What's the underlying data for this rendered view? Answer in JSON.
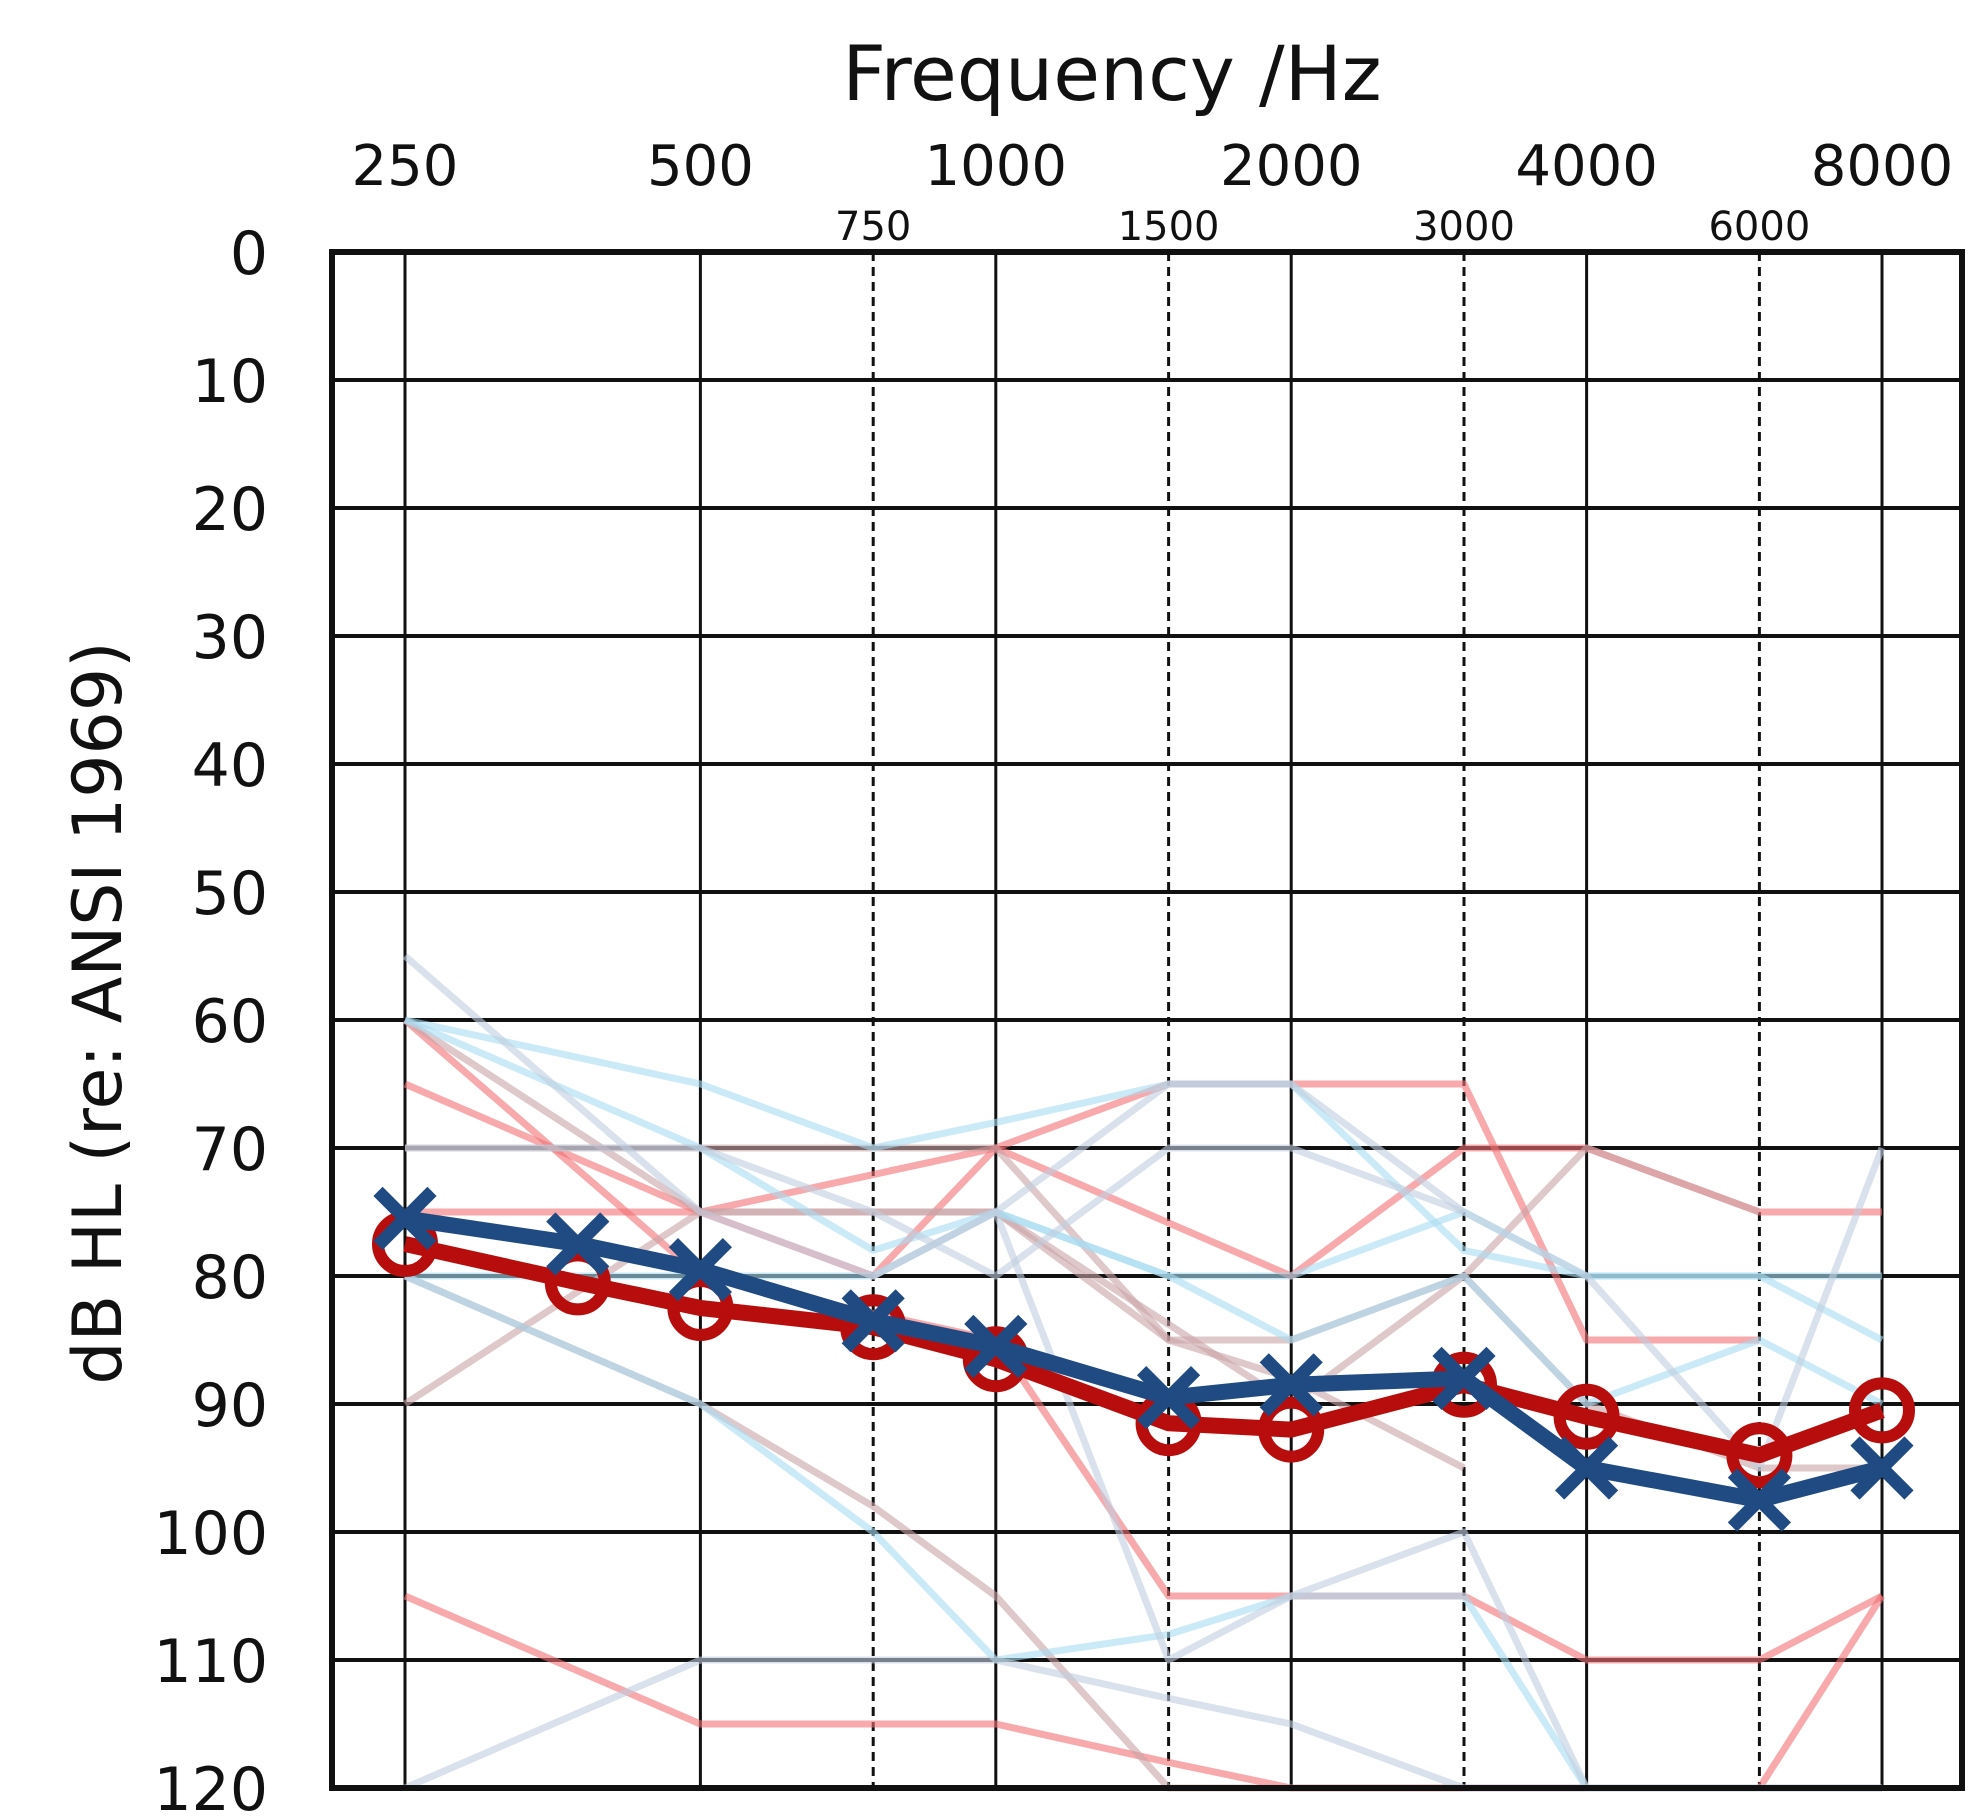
{
  "chart_data": {
    "type": "line",
    "title": "",
    "xlabel": "Frequency /Hz",
    "ylabel": "dB HL (re: ANSI 1969)",
    "x_scale": "log",
    "major_frequencies": [
      250,
      500,
      1000,
      2000,
      4000,
      8000
    ],
    "major_tick_labels": [
      "250",
      "500",
      "1000",
      "2000",
      "4000",
      "8000"
    ],
    "inter_frequencies": [
      750,
      1500,
      3000,
      6000
    ],
    "inter_tick_labels": [
      "750",
      "1500",
      "3000",
      "6000"
    ],
    "plot_frequencies": [
      250,
      375,
      500,
      750,
      1000,
      1500,
      2000,
      3000,
      4000,
      6000,
      8000
    ],
    "ylim": [
      0,
      120
    ],
    "y_inverted": true,
    "y_ticks": [
      0,
      10,
      20,
      30,
      40,
      50,
      60,
      70,
      80,
      90,
      100,
      110,
      120
    ],
    "y_tick_labels": [
      "0",
      "10",
      "20",
      "30",
      "40",
      "50",
      "60",
      "70",
      "80",
      "90",
      "100",
      "110",
      "120"
    ],
    "grid": true,
    "legend": "none",
    "individual_curves": [
      {
        "color": "#f26f73",
        "x": [
          250,
          500,
          750,
          1000,
          2000,
          3000,
          4000,
          6000,
          8000
        ],
        "values": [
          75,
          75,
          80,
          70,
          80,
          70,
          70,
          75,
          75
        ]
      },
      {
        "color": "#f26f73",
        "x": [
          250,
          500,
          1000,
          1500,
          2000,
          3000,
          4000,
          6000
        ],
        "values": [
          65,
          75,
          70,
          65,
          65,
          65,
          85,
          85
        ]
      },
      {
        "color": "#f26f73",
        "x": [
          250,
          500,
          750,
          1000,
          1500,
          2000,
          3000,
          4000,
          6000,
          8000
        ],
        "values": [
          105,
          115,
          115,
          115,
          118,
          120,
          120,
          120,
          120,
          120
        ]
      },
      {
        "color": "#f26f73",
        "x": [
          250,
          500,
          1000,
          1500,
          2000,
          3000,
          4000,
          6000,
          8000
        ],
        "values": [
          60,
          80,
          85,
          105,
          105,
          105,
          110,
          110,
          105
        ]
      },
      {
        "color": "#f26f73",
        "x": [
          6000,
          8000
        ],
        "values": [
          120,
          105
        ]
      },
      {
        "color": "#c9a3a7",
        "x": [
          250,
          500,
          1000,
          2000,
          3000,
          4000,
          6000
        ],
        "values": [
          90,
          75,
          75,
          90,
          80,
          70,
          75
        ]
      },
      {
        "color": "#c9a3a7",
        "x": [
          250,
          500,
          750,
          1000,
          1500,
          2000,
          3000,
          4000,
          6000,
          8000
        ],
        "values": [
          80,
          90,
          98,
          105,
          120,
          120,
          120,
          120,
          120,
          120
        ]
      },
      {
        "color": "#c9a3a7",
        "x": [
          250,
          500,
          1000,
          1500,
          2000,
          3000,
          4000,
          6000,
          8000
        ],
        "values": [
          70,
          70,
          70,
          85,
          85,
          80,
          90,
          95,
          95
        ]
      },
      {
        "color": "#c9a3a7",
        "x": [
          250,
          500,
          750,
          1000,
          1500,
          2000,
          3000
        ],
        "values": [
          60,
          75,
          75,
          75,
          85,
          88,
          95
        ]
      },
      {
        "color": "#a9dcf2",
        "x": [
          250,
          500,
          750,
          1000,
          1500,
          2000,
          3000,
          4000,
          6000,
          8000
        ],
        "values": [
          60,
          65,
          70,
          68,
          65,
          65,
          78,
          80,
          80,
          85
        ]
      },
      {
        "color": "#a9dcf2",
        "x": [
          250,
          500,
          750,
          1000,
          1500,
          2000,
          3000,
          4000,
          6000,
          8000
        ],
        "values": [
          80,
          90,
          100,
          110,
          108,
          105,
          105,
          120,
          120,
          120
        ]
      },
      {
        "color": "#a9dcf2",
        "x": [
          250,
          500,
          750,
          1000,
          1500,
          2000,
          3000,
          4000,
          6000,
          8000
        ],
        "values": [
          60,
          70,
          78,
          75,
          80,
          85,
          80,
          90,
          85,
          90
        ]
      },
      {
        "color": "#a9dcf2",
        "x": [
          250,
          500,
          750,
          1000,
          1500,
          2000,
          3000,
          4000,
          6000,
          8000
        ],
        "values": [
          80,
          80,
          80,
          75,
          80,
          80,
          75,
          80,
          80,
          80
        ]
      },
      {
        "color": "#bfcfe0",
        "x": [
          250,
          500,
          750,
          1000,
          1500,
          2000,
          3000,
          4000,
          6000,
          8000
        ],
        "values": [
          55,
          75,
          80,
          75,
          110,
          105,
          100,
          120,
          120,
          120
        ]
      },
      {
        "color": "#bfcfe0",
        "x": [
          250,
          500,
          1000,
          1500,
          2000,
          3000,
          4000,
          6000,
          8000
        ],
        "values": [
          120,
          110,
          110,
          113,
          115,
          120,
          120,
          120,
          120
        ]
      },
      {
        "color": "#bfcfe0",
        "x": [
          250,
          500,
          750,
          1000,
          1500,
          2000,
          3000,
          4000,
          6000,
          8000
        ],
        "values": [
          70,
          70,
          75,
          80,
          70,
          70,
          75,
          80,
          95,
          70
        ]
      },
      {
        "color": "#bfcfe0",
        "x": [
          750,
          1000,
          1500,
          2000,
          3000
        ],
        "values": [
          80,
          75,
          65,
          65,
          75
        ]
      }
    ],
    "series": [
      {
        "name": "",
        "marker": "o",
        "color": "#b80d0d",
        "x": [
          250,
          375,
          500,
          750,
          1000,
          1500,
          2000,
          3000,
          4000,
          6000,
          8000
        ],
        "values": [
          77.5,
          80.5,
          82.5,
          84,
          86.5,
          91.5,
          92,
          88.5,
          91,
          94,
          90.5
        ]
      },
      {
        "name": "",
        "marker": "x",
        "color": "#1f4b82",
        "x": [
          250,
          375,
          500,
          750,
          1000,
          1500,
          2000,
          3000,
          4000,
          6000,
          8000
        ],
        "values": [
          75.5,
          77.5,
          79.5,
          83.5,
          85.5,
          89.5,
          88.5,
          88,
          95,
          97.5,
          95
        ]
      }
    ]
  }
}
